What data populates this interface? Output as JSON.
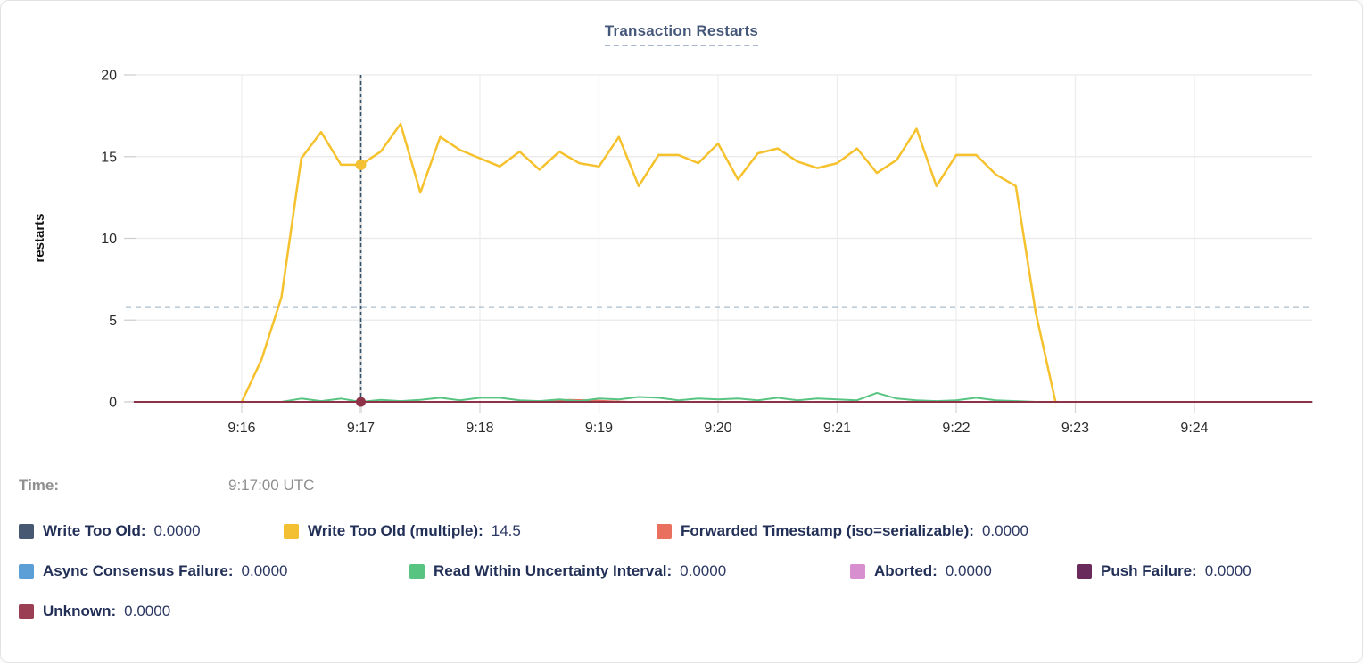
{
  "page": {
    "title": "Transaction Restarts"
  },
  "time_row": {
    "label": "Time:",
    "value": "9:17:00 UTC"
  },
  "legend": {
    "rows": [
      [
        {
          "label": "Write Too Old:",
          "value": "0.0000",
          "color": "#475872"
        },
        {
          "label": "Write Too Old (multiple):",
          "value": "14.5",
          "color": "#f2c032"
        },
        {
          "label": "Forwarded Timestamp (iso=serializable):",
          "value": "0.0000",
          "color": "#e96f5f"
        }
      ],
      [
        {
          "label": "Async Consensus Failure:",
          "value": "0.0000",
          "color": "#5c9ed6"
        },
        {
          "label": "Read Within Uncertainty Interval:",
          "value": "0.0000",
          "color": "#57c482"
        },
        {
          "label": "Aborted:",
          "value": "0.0000",
          "color": "#d88fd0"
        },
        {
          "label": "Push Failure:",
          "value": "0.0000",
          "color": "#692a5c"
        }
      ],
      [
        {
          "label": "Unknown:",
          "value": "0.0000",
          "color": "#9b4054"
        }
      ]
    ]
  },
  "chart_data": {
    "type": "line",
    "title": "Transaction Restarts",
    "xlabel": "",
    "ylabel": "restarts",
    "ylim": [
      0,
      20
    ],
    "yticks": [
      0,
      5,
      10,
      15,
      20
    ],
    "xticks": [
      {
        "label": "9:16",
        "sec": 60
      },
      {
        "label": "9:17",
        "sec": 120
      },
      {
        "label": "9:18",
        "sec": 180
      },
      {
        "label": "9:19",
        "sec": 240
      },
      {
        "label": "9:20",
        "sec": 300
      },
      {
        "label": "9:21",
        "sec": 360
      },
      {
        "label": "9:22",
        "sec": 420
      },
      {
        "label": "9:23",
        "sec": 480
      },
      {
        "label": "9:24",
        "sec": 540
      }
    ],
    "x_unit": "seconds since 9:15:00, axis spans ~9:15:06 to ~9:25:00",
    "grid": true,
    "threshold_dashed_line_y": 5.8,
    "crosshair": {
      "time_label": "9:17:00 UTC",
      "sec": 120,
      "points": [
        {
          "series": "Write Too Old (multiple)",
          "value": 14.5,
          "color": "#f2c032",
          "r": 6
        },
        {
          "series": "Unknown",
          "value": 0,
          "color": "#8e3247",
          "r": 5.5
        }
      ]
    },
    "series": [
      {
        "name": "Write Too Old",
        "color": "#475872",
        "width": 2,
        "values": [
          [
            6,
            0
          ],
          [
            599,
            0
          ]
        ]
      },
      {
        "name": "Write Too Old (multiple)",
        "color": "#f5c12d",
        "width": 2.5,
        "values": [
          [
            60,
            0
          ],
          [
            70,
            2.6
          ],
          [
            80,
            6.4
          ],
          [
            90,
            14.9
          ],
          [
            100,
            16.5
          ],
          [
            110,
            14.5
          ],
          [
            120,
            14.5
          ],
          [
            130,
            15.3
          ],
          [
            140,
            17.0
          ],
          [
            150,
            12.8
          ],
          [
            160,
            16.2
          ],
          [
            170,
            15.4
          ],
          [
            180,
            14.9
          ],
          [
            190,
            14.4
          ],
          [
            200,
            15.3
          ],
          [
            210,
            14.2
          ],
          [
            220,
            15.3
          ],
          [
            230,
            14.6
          ],
          [
            240,
            14.4
          ],
          [
            250,
            16.2
          ],
          [
            260,
            13.2
          ],
          [
            270,
            15.1
          ],
          [
            280,
            15.1
          ],
          [
            290,
            14.6
          ],
          [
            300,
            15.8
          ],
          [
            310,
            13.6
          ],
          [
            320,
            15.2
          ],
          [
            330,
            15.5
          ],
          [
            340,
            14.7
          ],
          [
            350,
            14.3
          ],
          [
            360,
            14.6
          ],
          [
            370,
            15.5
          ],
          [
            380,
            14.0
          ],
          [
            390,
            14.8
          ],
          [
            400,
            16.7
          ],
          [
            410,
            13.2
          ],
          [
            420,
            15.1
          ],
          [
            430,
            15.1
          ],
          [
            440,
            13.9
          ],
          [
            450,
            13.2
          ],
          [
            460,
            5.5
          ],
          [
            470,
            0
          ]
        ]
      },
      {
        "name": "Forwarded Timestamp (iso=serializable)",
        "color": "#e96f5f",
        "width": 2,
        "values": [
          [
            6,
            0
          ],
          [
            205,
            0
          ],
          [
            215,
            0.08
          ],
          [
            225,
            0.12
          ],
          [
            235,
            0.1
          ],
          [
            245,
            0.04
          ],
          [
            255,
            0
          ],
          [
            599,
            0
          ]
        ]
      },
      {
        "name": "Async Consensus Failure",
        "color": "#5c9ed6",
        "width": 2,
        "values": [
          [
            6,
            0
          ],
          [
            599,
            0
          ]
        ]
      },
      {
        "name": "Read Within Uncertainty Interval",
        "color": "#57c482",
        "width": 2,
        "values": [
          [
            6,
            0
          ],
          [
            80,
            0
          ],
          [
            90,
            0.2
          ],
          [
            100,
            0.05
          ],
          [
            110,
            0.2
          ],
          [
            120,
            0
          ],
          [
            130,
            0.12
          ],
          [
            140,
            0.05
          ],
          [
            150,
            0.12
          ],
          [
            160,
            0.25
          ],
          [
            170,
            0.1
          ],
          [
            180,
            0.25
          ],
          [
            190,
            0.25
          ],
          [
            200,
            0.1
          ],
          [
            210,
            0.05
          ],
          [
            220,
            0.15
          ],
          [
            230,
            0.05
          ],
          [
            240,
            0.2
          ],
          [
            250,
            0.15
          ],
          [
            260,
            0.3
          ],
          [
            270,
            0.25
          ],
          [
            280,
            0.1
          ],
          [
            290,
            0.2
          ],
          [
            300,
            0.15
          ],
          [
            310,
            0.2
          ],
          [
            320,
            0.1
          ],
          [
            330,
            0.25
          ],
          [
            340,
            0.1
          ],
          [
            350,
            0.2
          ],
          [
            360,
            0.15
          ],
          [
            370,
            0.1
          ],
          [
            380,
            0.55
          ],
          [
            390,
            0.2
          ],
          [
            400,
            0.1
          ],
          [
            410,
            0.05
          ],
          [
            420,
            0.1
          ],
          [
            430,
            0.25
          ],
          [
            440,
            0.1
          ],
          [
            450,
            0.05
          ],
          [
            460,
            0
          ],
          [
            599,
            0
          ]
        ]
      },
      {
        "name": "Aborted",
        "color": "#d88fd0",
        "width": 2,
        "values": [
          [
            6,
            0
          ],
          [
            599,
            0
          ]
        ]
      },
      {
        "name": "Push Failure",
        "color": "#692a5c",
        "width": 2,
        "values": [
          [
            6,
            0
          ],
          [
            599,
            0
          ]
        ]
      },
      {
        "name": "Unknown",
        "color": "#8e3247",
        "width": 2,
        "values": [
          [
            6,
            0
          ],
          [
            599,
            0
          ]
        ]
      }
    ],
    "colors": {
      "grid": "#e9e9e9",
      "grid_vertical": "#ededed",
      "crosshair": "#33506b",
      "threshold": "#5e7f9e",
      "tick_text": "#2b2b2b"
    }
  }
}
